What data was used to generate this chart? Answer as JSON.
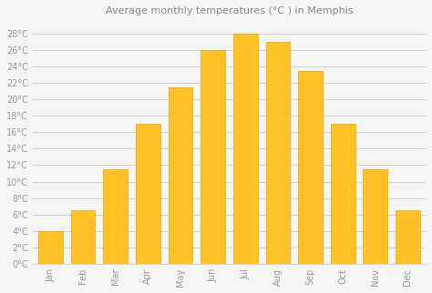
{
  "title": "Average monthly temperatures (°C ) in Memphis",
  "months": [
    "Jan",
    "Feb",
    "Mar",
    "Apr",
    "May",
    "Jun",
    "Jul",
    "Aug",
    "Sep",
    "Oct",
    "Nov",
    "Dec"
  ],
  "values": [
    4,
    6.5,
    11.5,
    17,
    21.5,
    26,
    28,
    27,
    23.5,
    17,
    11.5,
    6.5
  ],
  "bar_color": "#FFC125",
  "bar_edge_color": "#E8A800",
  "background_color": "#f5f5f5",
  "grid_color": "#cccccc",
  "text_color": "#999999",
  "title_color": "#888888",
  "yticks": [
    0,
    2,
    4,
    6,
    8,
    10,
    12,
    14,
    16,
    18,
    20,
    22,
    24,
    26,
    28
  ],
  "ylim": [
    0,
    29.5
  ],
  "title_fontsize": 8,
  "tick_fontsize": 7,
  "xtick_fontsize": 7,
  "bar_width": 0.75
}
